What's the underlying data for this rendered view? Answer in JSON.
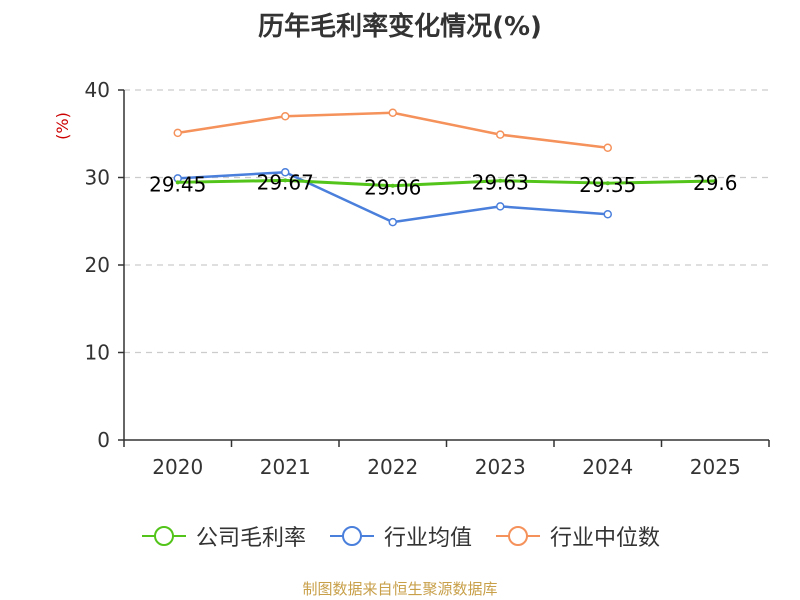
{
  "chart_data": {
    "type": "line",
    "title": "历年毛利率变化情况(%)",
    "ylabel": "(%)",
    "xlabel": "",
    "categories": [
      "2020",
      "2021",
      "2022",
      "2023",
      "2024",
      "2025"
    ],
    "yticks": [
      "0",
      "10",
      "20",
      "30",
      "40"
    ],
    "ylim": [
      0,
      40
    ],
    "grid": true,
    "legend_position": "bottom",
    "series": [
      {
        "name": "公司毛利率",
        "color": "#52c41a",
        "values": [
          29.45,
          29.67,
          29.06,
          29.63,
          29.35,
          29.6
        ],
        "labels": [
          "29.45",
          "29.67",
          "29.06",
          "29.63",
          "29.35",
          "29.6"
        ]
      },
      {
        "name": "行业均值",
        "color": "#4a7fdc",
        "values": [
          29.9,
          30.6,
          24.9,
          26.7,
          25.8,
          null
        ]
      },
      {
        "name": "行业中位数",
        "color": "#f5915a",
        "values": [
          35.1,
          37.0,
          37.4,
          34.9,
          33.4,
          null
        ]
      }
    ]
  },
  "source": "制图数据来自恒生聚源数据库"
}
